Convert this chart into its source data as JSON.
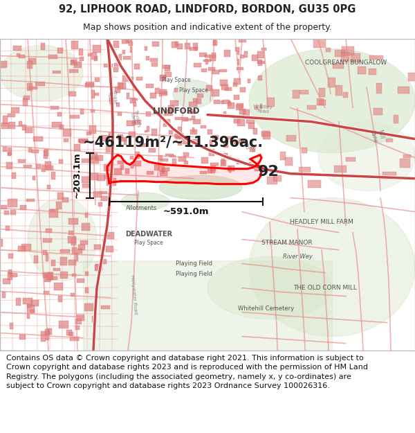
{
  "title_line1": "92, LIPHOOK ROAD, LINDFORD, BORDON, GU35 0PG",
  "title_line2": "Map shows position and indicative extent of the property.",
  "title_fontsize": 10.5,
  "subtitle_fontsize": 9,
  "area_text": "~46119m²/~11.396ac.",
  "area_fontsize": 15,
  "label_92": "92",
  "label_92_fontsize": 16,
  "scale_h_text": "~591.0m",
  "scale_v_text": "~203.1m",
  "scale_fontsize": 9.5,
  "footer_text": "Contains OS data © Crown copyright and database right 2021. This information is subject to Crown copyright and database rights 2023 and is reproduced with the permission of HM Land Registry. The polygons (including the associated geometry, namely x, y co-ordinates) are subject to Crown copyright and database rights 2023 Ordnance Survey 100026316.",
  "footer_fontsize": 8.0,
  "bg_color": "#ffffff",
  "map_bg": "#f7f2ed",
  "road_pink": "#f0a8a0",
  "road_red": "#e05050",
  "road_outline": "#cc4444",
  "green1": "#ccdec8",
  "green2": "#d5e5c8",
  "green3": "#dce8d0",
  "water_green": "#c8dfc0",
  "prop_red": "#e8000080",
  "scale_color": "#111111",
  "text_dark": "#222222",
  "text_place": "#444444",
  "footer_color": "#111111",
  "border_color": "#bbbbbb"
}
